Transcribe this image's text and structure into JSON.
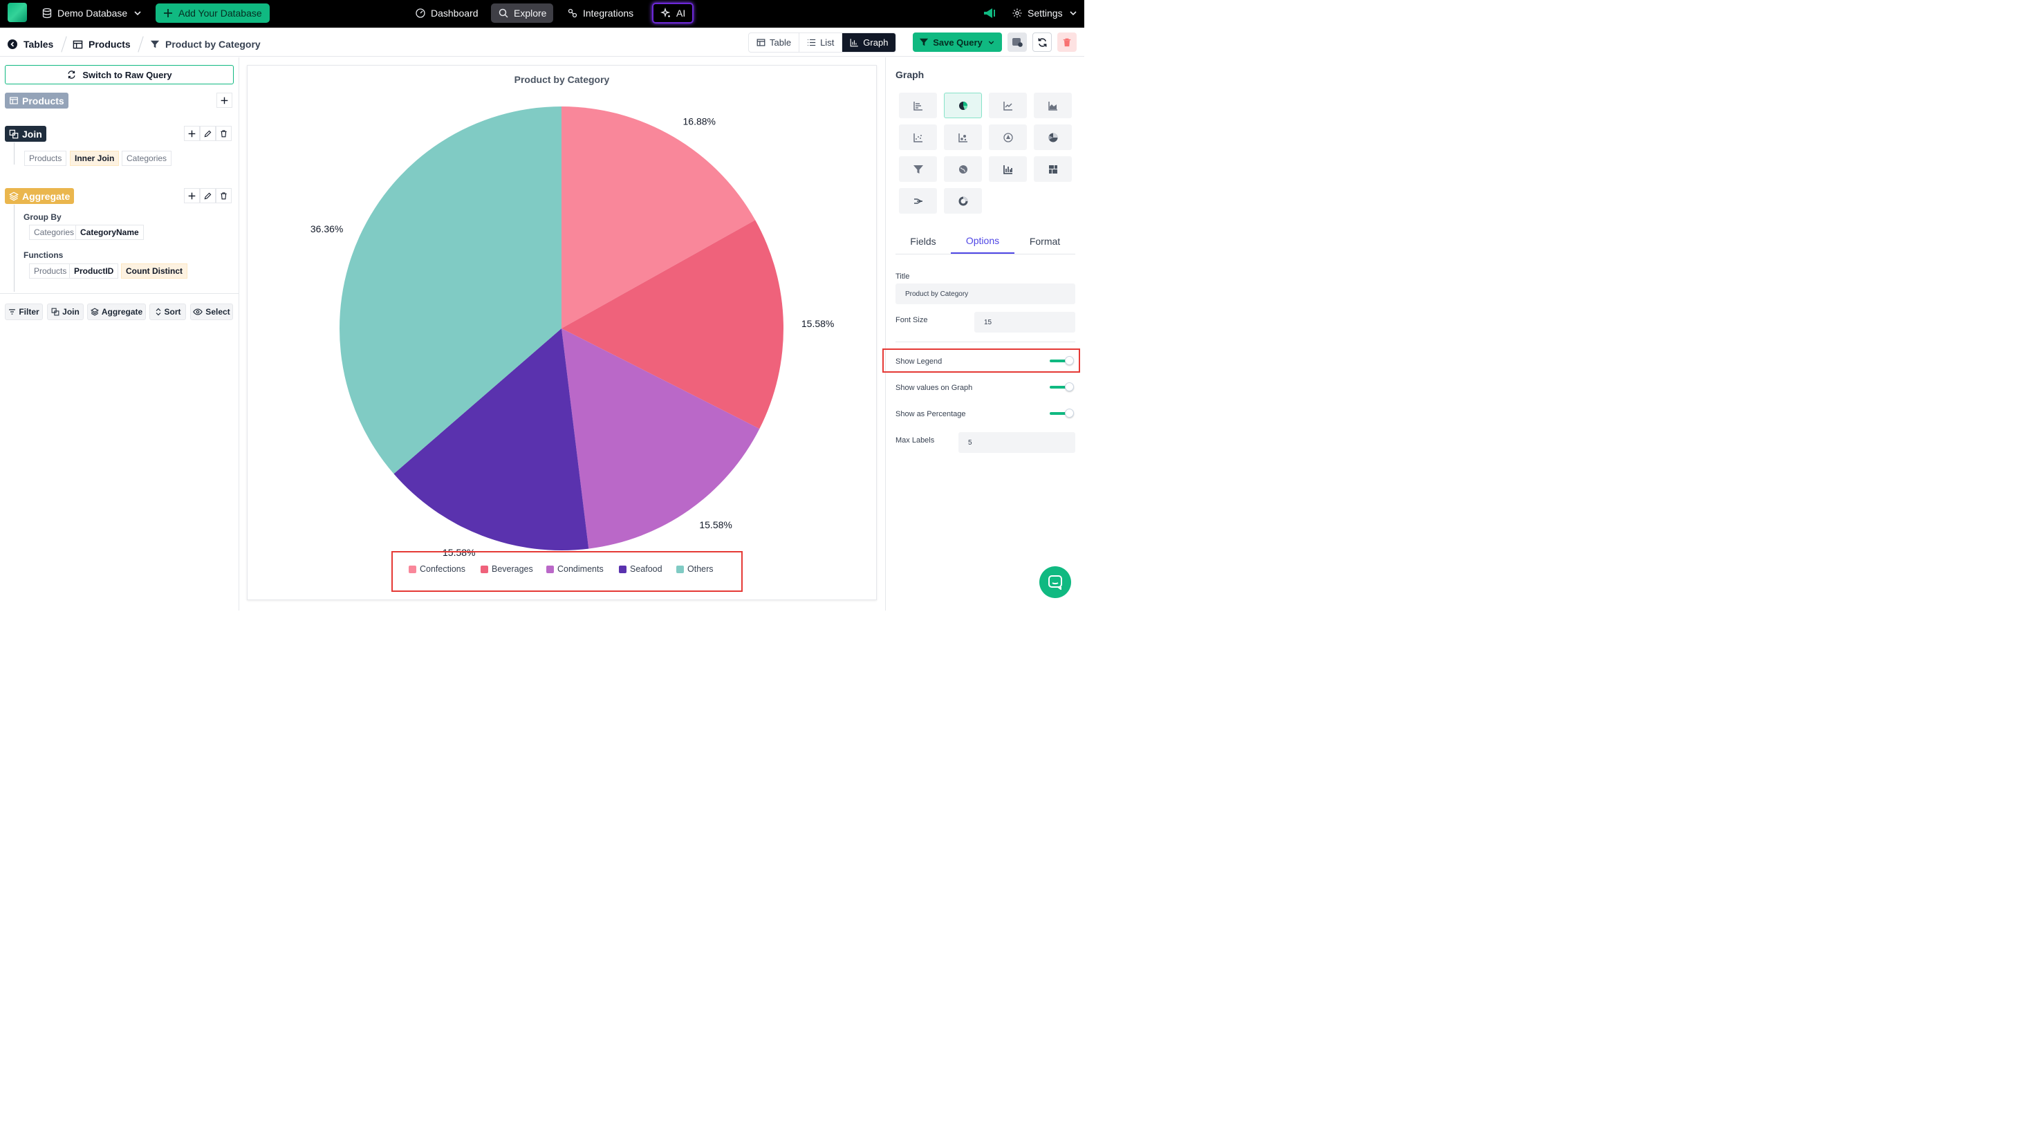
{
  "topbar": {
    "database": "Demo Database",
    "add_database": "Add Your Database",
    "nav": {
      "dashboard": "Dashboard",
      "explore": "Explore",
      "integrations": "Integrations",
      "ai": "AI"
    },
    "settings": "Settings"
  },
  "breadcrumb": {
    "tables": "Tables",
    "products": "Products",
    "query": "Product by Category"
  },
  "view_switch": {
    "table": "Table",
    "list": "List",
    "graph": "Graph",
    "active": "Graph"
  },
  "save_query": "Save Query",
  "left_panel": {
    "switch_raw": "Switch to Raw Query",
    "source": "Products",
    "join": {
      "title": "Join",
      "left": "Products",
      "type": "Inner Join",
      "right": "Categories"
    },
    "aggregate": {
      "title": "Aggregate",
      "group_by_label": "Group By",
      "group_table": "Categories",
      "group_column": "CategoryName",
      "functions_label": "Functions",
      "fn_table": "Products",
      "fn_column": "ProductID",
      "fn": "Count Distinct"
    },
    "actions": {
      "filter": "Filter",
      "join": "Join",
      "aggregate": "Aggregate",
      "sort": "Sort",
      "select": "Select"
    }
  },
  "chart_data": {
    "type": "pie",
    "title": "Product by Category",
    "categories": [
      "Confections",
      "Beverages",
      "Condiments",
      "Seafood",
      "Others"
    ],
    "values": [
      16.88,
      15.58,
      15.58,
      15.58,
      36.36
    ],
    "labels": [
      "16.88%",
      "15.58%",
      "15.58%",
      "15.58%",
      "36.36%"
    ],
    "colors": [
      "#f9879a",
      "#ef627b",
      "#ba68c8",
      "#5a32ae",
      "#80cbc4"
    ],
    "legend": "bottom",
    "show_values": true,
    "show_percentage": true
  },
  "right_panel": {
    "heading": "Graph",
    "selected_graph": "pie",
    "graph_types": [
      "bar-horizontal",
      "pie",
      "line",
      "area",
      "scatter",
      "bubble",
      "radar",
      "pie-3d",
      "funnel",
      "map",
      "bar-vertical",
      "treemap",
      "sankey",
      "donut"
    ],
    "tabs": {
      "fields": "Fields",
      "options": "Options",
      "format": "Format",
      "active": "Options"
    },
    "options": {
      "title_label": "Title",
      "title_value": "Product by Category",
      "font_size_label": "Font Size",
      "font_size_value": "15",
      "show_legend_label": "Show Legend",
      "show_legend": true,
      "show_values_label": "Show values on Graph",
      "show_values": true,
      "show_percentage_label": "Show as Percentage",
      "show_percentage": true,
      "max_labels_label": "Max Labels",
      "max_labels_value": "5"
    }
  },
  "colors": {
    "accent": "#10b981",
    "join_tag": "#1f2d3d",
    "aggregate_tag": "#eab64d",
    "source_tag": "#94a3b8",
    "highlight": "#e53935"
  }
}
